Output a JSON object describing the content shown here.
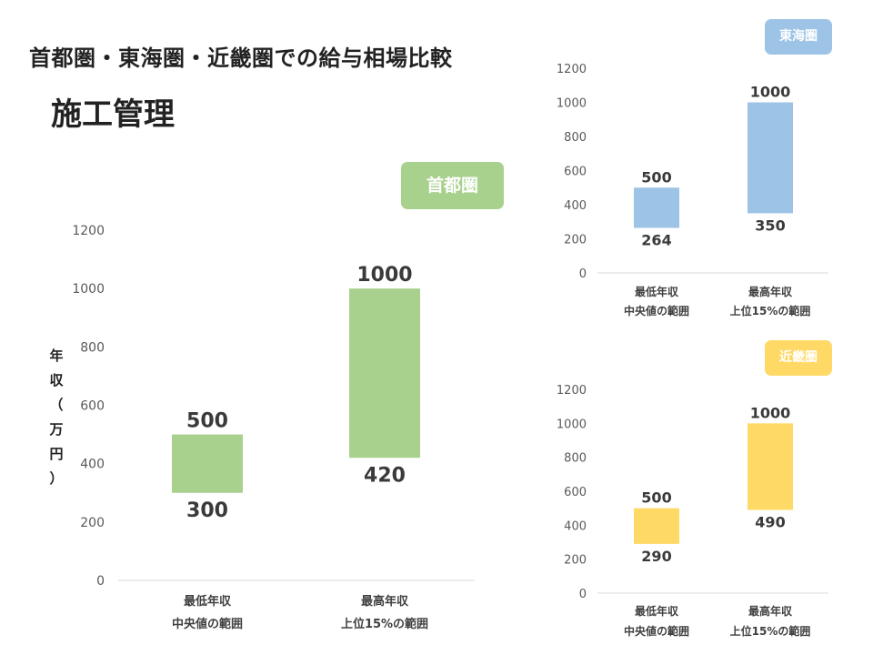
{
  "header": {
    "title": "首都圏・東海圏・近畿圏での給与相場比較",
    "subtitle": "施工管理"
  },
  "y_axis_label": [
    "年",
    "収",
    "（",
    "万",
    "円",
    "）"
  ],
  "chart_data": [
    {
      "type": "bar",
      "region": "首都圏",
      "badge_color": "#A9D18E",
      "bar_color": "#A9D18E",
      "categories": [
        [
          "最低年収",
          "中央値の範囲"
        ],
        [
          "最高年収",
          "上位15%の範囲"
        ]
      ],
      "ranges": [
        {
          "low": 300,
          "high": 500
        },
        {
          "low": 420,
          "high": 1000
        }
      ],
      "ylim": [
        0,
        1200
      ],
      "yticks": [
        0,
        200,
        400,
        600,
        800,
        1000,
        1200
      ],
      "ylabel": "年収（万円）",
      "grid": false
    },
    {
      "type": "bar",
      "region": "東海圏",
      "badge_color": "#9DC3E6",
      "bar_color": "#9DC3E6",
      "categories": [
        [
          "最低年収",
          "中央値の範囲"
        ],
        [
          "最高年収",
          "上位15%の範囲"
        ]
      ],
      "ranges": [
        {
          "low": 264,
          "high": 500
        },
        {
          "low": 350,
          "high": 1000
        }
      ],
      "ylim": [
        0,
        1200
      ],
      "yticks": [
        0,
        200,
        400,
        600,
        800,
        1000,
        1200
      ],
      "grid": false
    },
    {
      "type": "bar",
      "region": "近畿圏",
      "badge_color": "#FFD966",
      "bar_color": "#FFD966",
      "categories": [
        [
          "最低年収",
          "中央値の範囲"
        ],
        [
          "最高年収",
          "上位15%の範囲"
        ]
      ],
      "ranges": [
        {
          "low": 290,
          "high": 500
        },
        {
          "low": 490,
          "high": 1000
        }
      ],
      "ylim": [
        0,
        1200
      ],
      "yticks": [
        0,
        200,
        400,
        600,
        800,
        1000,
        1200
      ],
      "grid": false
    }
  ]
}
